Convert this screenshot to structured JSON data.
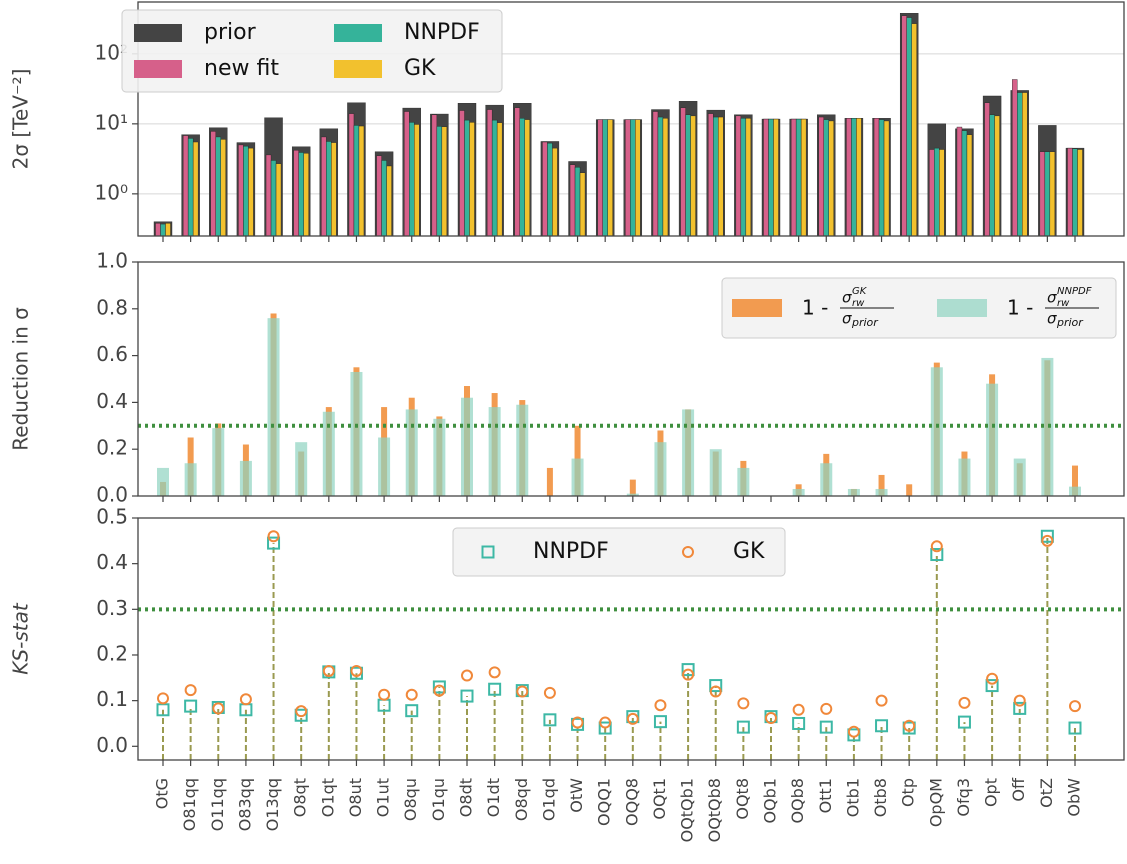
{
  "chart_data": [
    {
      "type": "bar",
      "yscale": "log",
      "ylabel": "2σ [TeV⁻²]",
      "ylim": [
        0.25,
        550
      ],
      "yticks": [
        {
          "value": 1,
          "label": "10⁰"
        },
        {
          "value": 10,
          "label": "10¹"
        },
        {
          "value": 100,
          "label": "10²"
        }
      ],
      "grid": true,
      "legend": "upper left",
      "series": [
        {
          "name": "prior",
          "color": "#444444",
          "values": [
            0.4,
            7.0,
            8.8,
            5.4,
            12.2,
            4.7,
            8.5,
            20,
            4.0,
            16.8,
            13.8,
            19.7,
            18.5,
            19.7,
            5.6,
            2.9,
            11.5,
            11.5,
            16,
            21,
            15.7,
            13.5,
            11.7,
            11.7,
            13.5,
            12,
            12,
            380,
            10,
            8.5,
            25,
            30,
            9.5,
            4.5
          ]
        },
        {
          "name": "new fit",
          "color": "#d6608a",
          "values": [
            0.38,
            6.8,
            7.8,
            5.0,
            3.6,
            4.2,
            6.5,
            14,
            3.5,
            15,
            13.5,
            15.5,
            16,
            17,
            5.5,
            2.6,
            11.5,
            11.5,
            15,
            17,
            14,
            13,
            11.7,
            11.7,
            12.5,
            12,
            12,
            350,
            4.3,
            9.0,
            20,
            43,
            4.0,
            4.5
          ]
        },
        {
          "name": "NNPDF",
          "color": "#35b39a",
          "values": [
            0.37,
            6.2,
            6.5,
            4.8,
            3.0,
            3.9,
            5.6,
            9.5,
            3.0,
            10.5,
            9.2,
            11.3,
            11.3,
            12,
            5.3,
            2.4,
            11.5,
            11.5,
            12.5,
            13.5,
            12.5,
            12,
            11.7,
            11.7,
            11.5,
            12,
            11.5,
            330,
            4.5,
            8.0,
            13.5,
            28,
            4.0,
            4.4
          ]
        },
        {
          "name": "GK",
          "color": "#f2c12e",
          "values": [
            0.38,
            5.5,
            6.0,
            4.5,
            2.7,
            3.8,
            5.4,
            9.3,
            2.5,
            9.8,
            9.1,
            10.5,
            10.4,
            11.5,
            4.5,
            2.0,
            11.5,
            11.5,
            12,
            13,
            12.5,
            12,
            11.7,
            11.7,
            11,
            12,
            11,
            270,
            4.3,
            7.0,
            13,
            28,
            4.0,
            4.3
          ]
        }
      ]
    },
    {
      "type": "overlay_bar",
      "ylabel": "Reduction in σ",
      "ylim": [
        0,
        1
      ],
      "yticks": [
        {
          "value": 0,
          "label": "0.0"
        },
        0.2,
        0.4,
        0.6,
        0.8,
        {
          "value": 1,
          "label": "1.0"
        }
      ],
      "hline": 0.3,
      "hline_color": "#3f8f3f",
      "legend": "upper right",
      "series": [
        {
          "label": {
            "lead": "1 -",
            "num": "σ",
            "num_sup": "GK",
            "num_sub": "rw",
            "den": "σ",
            "den_sub": "prior"
          },
          "color": "#f29b50",
          "values": [
            0.06,
            0.25,
            0.31,
            0.22,
            0.78,
            0.19,
            0.38,
            0.55,
            0.38,
            0.42,
            0.34,
            0.47,
            0.44,
            0.41,
            0.12,
            0.3,
            0,
            0.07,
            0.28,
            0.37,
            0.19,
            0.15,
            0,
            0.05,
            0.18,
            0.03,
            0.09,
            0.05,
            0.57,
            0.19,
            0.52,
            0.14,
            0.58,
            0.13
          ]
        },
        {
          "label": {
            "lead": "1 -",
            "num": "σ",
            "num_sup": "NNPDF",
            "num_sub": "rw",
            "den": "σ",
            "den_sub": "prior"
          },
          "color": "#8fd3c1",
          "values": [
            0.12,
            0.14,
            0.29,
            0.15,
            0.76,
            0.23,
            0.36,
            0.53,
            0.25,
            0.37,
            0.33,
            0.42,
            0.38,
            0.39,
            0,
            0.16,
            0,
            0.01,
            0.23,
            0.37,
            0.2,
            0.12,
            0,
            0.03,
            0.14,
            0.03,
            0.03,
            0,
            0.55,
            0.16,
            0.48,
            0.16,
            0.59,
            0.04
          ]
        }
      ]
    },
    {
      "type": "stem",
      "ylabel": "KS-stat",
      "ylim": [
        -0.03,
        0.5
      ],
      "yticks": [
        {
          "value": 0,
          "label": "0.0"
        },
        0.1,
        0.2,
        0.3,
        0.4,
        0.5
      ],
      "hline": 0.3,
      "hline_color": "#3f8f3f",
      "stem_color": "#9a9a50",
      "legend": "upper center",
      "categories": [
        "OtG",
        "O81qq",
        "O11qq",
        "O83qq",
        "O13qq",
        "O8qt",
        "O1qt",
        "O8ut",
        "O1ut",
        "O8qu",
        "O1qu",
        "O8dt",
        "O1dt",
        "O8qd",
        "O1qd",
        "OtW",
        "OQQ1",
        "OQQ8",
        "OQt1",
        "OQtQb1",
        "OQtQb8",
        "OQt8",
        "OQb1",
        "OQb8",
        "Ott1",
        "Otb1",
        "Otb8",
        "Otp",
        "OpQM",
        "Ofq3",
        "Opt",
        "Off",
        "OtZ",
        "ObW"
      ],
      "series": [
        {
          "name": "NNPDF",
          "color": "#3db8a5",
          "marker": "square",
          "values": [
            0.08,
            0.088,
            0.085,
            0.08,
            0.445,
            0.068,
            0.163,
            0.16,
            0.09,
            0.078,
            0.13,
            0.11,
            0.125,
            0.122,
            0.058,
            0.048,
            0.04,
            0.065,
            0.054,
            0.168,
            0.133,
            0.042,
            0.065,
            0.05,
            0.042,
            0.025,
            0.045,
            0.04,
            0.42,
            0.053,
            0.133,
            0.083,
            0.46,
            0.04
          ]
        },
        {
          "name": "GK",
          "color": "#f0883a",
          "marker": "circle",
          "values": [
            0.105,
            0.123,
            0.083,
            0.103,
            0.46,
            0.077,
            0.165,
            0.165,
            0.113,
            0.113,
            0.122,
            0.155,
            0.162,
            0.12,
            0.117,
            0.052,
            0.052,
            0.06,
            0.09,
            0.157,
            0.12,
            0.094,
            0.062,
            0.08,
            0.082,
            0.032,
            0.1,
            0.045,
            0.438,
            0.095,
            0.148,
            0.1,
            0.45,
            0.088
          ]
        }
      ]
    }
  ]
}
